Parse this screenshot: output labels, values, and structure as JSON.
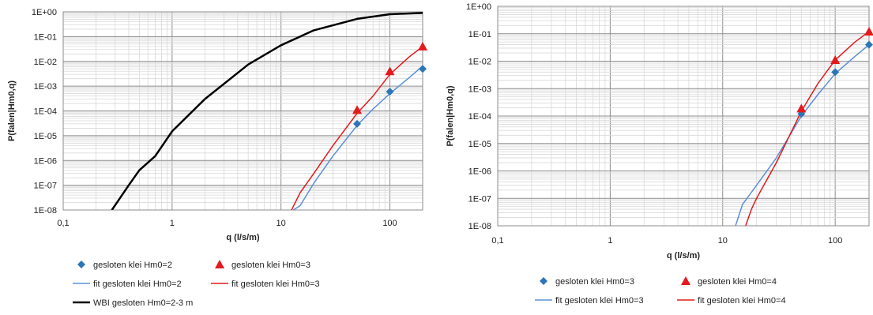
{
  "chart_data": [
    {
      "type": "line",
      "xlabel": "q (l/s/m)",
      "ylabel": "P(falen|Hm0,q)",
      "x_scale": "log",
      "y_scale": "log",
      "xlim": [
        0.1,
        200
      ],
      "ylim": [
        1e-08,
        1
      ],
      "x_tick_labels": [
        "0,1",
        "1",
        "10",
        "100"
      ],
      "x_tick_values": [
        0.1,
        1,
        10,
        100
      ],
      "y_tick_labels": [
        "1E-08",
        "1E-07",
        "1E-06",
        "1E-05",
        "1E-04",
        "1E-03",
        "1E-02",
        "1E-01",
        "1E+00"
      ],
      "grid": true,
      "legend_position": "bottom",
      "series": [
        {
          "name": "gesloten klei Hm0=2",
          "kind": "marker",
          "marker": "diamond",
          "color": "#2e75b6",
          "x": [
            50,
            100,
            200
          ],
          "y": [
            3e-05,
            0.0006,
            0.005
          ]
        },
        {
          "name": "gesloten klei Hm0=3",
          "kind": "marker",
          "marker": "triangle",
          "color": "#e41a1c",
          "x": [
            50,
            100,
            200
          ],
          "y": [
            0.00011,
            0.004,
            0.04
          ]
        },
        {
          "name": "fit gesloten klei Hm0=2",
          "kind": "line",
          "color": "#5b8fd6",
          "width": 1.5,
          "x": [
            13,
            15,
            20,
            30,
            50,
            70,
            100,
            150,
            200
          ],
          "y": [
            1e-08,
            1.5e-08,
            1.2e-07,
            1.5e-06,
            2.6e-05,
            0.00012,
            0.0005,
            0.0022,
            0.0065
          ]
        },
        {
          "name": "fit gesloten klei Hm0=3",
          "kind": "line",
          "color": "#e41a1c",
          "width": 1.5,
          "x": [
            12.5,
            15,
            20,
            30,
            50,
            70,
            100,
            150,
            200
          ],
          "y": [
            1e-08,
            5e-08,
            3e-07,
            4e-06,
            8e-05,
            0.0004,
            0.003,
            0.015,
            0.04
          ]
        },
        {
          "name": "WBI gesloten Hm0=2-3 m",
          "kind": "line",
          "color": "#000000",
          "width": 2.5,
          "x": [
            0.28,
            0.4,
            0.5,
            0.7,
            1,
            2,
            5,
            10,
            20,
            50,
            100,
            200
          ],
          "y": [
            1e-08,
            1e-07,
            4e-07,
            1.5e-06,
            1.5e-05,
            0.0003,
            0.0075,
            0.045,
            0.18,
            0.52,
            0.8,
            0.9
          ]
        }
      ],
      "legend_rows": [
        [
          "gesloten klei Hm0=2",
          "gesloten klei Hm0=3"
        ],
        [
          "fit gesloten klei Hm0=2",
          "fit gesloten klei Hm0=3"
        ],
        [
          "WBI gesloten Hm0=2-3 m"
        ]
      ]
    },
    {
      "type": "line",
      "xlabel": "q (l/s/m)",
      "ylabel": "P(falen|Hm0,q)",
      "x_scale": "log",
      "y_scale": "log",
      "xlim": [
        0.1,
        200
      ],
      "ylim": [
        1e-08,
        1
      ],
      "x_tick_labels": [
        "0,1",
        "1",
        "10",
        "100"
      ],
      "x_tick_values": [
        0.1,
        1,
        10,
        100
      ],
      "y_tick_labels": [
        "1E-08",
        "1E-07",
        "1E-06",
        "1E-05",
        "1E-04",
        "1E-03",
        "1E-02",
        "1E-01",
        "1E+00"
      ],
      "grid": true,
      "legend_position": "bottom",
      "series": [
        {
          "name": "gesloten klei Hm0=3",
          "kind": "marker",
          "marker": "diamond",
          "color": "#2e75b6",
          "x": [
            50,
            100,
            200
          ],
          "y": [
            0.00012,
            0.004,
            0.04
          ]
        },
        {
          "name": "gesloten klei Hm0=4",
          "kind": "marker",
          "marker": "triangle",
          "color": "#e41a1c",
          "x": [
            50,
            100,
            200
          ],
          "y": [
            0.00019,
            0.011,
            0.12
          ]
        },
        {
          "name": "fit gesloten klei Hm0=3",
          "kind": "line",
          "color": "#5b8fd6",
          "width": 1.5,
          "x": [
            13,
            15,
            20,
            30,
            50,
            70,
            100,
            150,
            200
          ],
          "y": [
            1e-08,
            6e-08,
            3e-07,
            3e-06,
            0.0001,
            0.0006,
            0.0035,
            0.015,
            0.04
          ]
        },
        {
          "name": "fit gesloten klei Hm0=4",
          "kind": "line",
          "color": "#e41a1c",
          "width": 1.5,
          "x": [
            16,
            18,
            20,
            30,
            50,
            70,
            100,
            150,
            200
          ],
          "y": [
            1e-08,
            4e-08,
            1e-07,
            2e-06,
            0.00015,
            0.0015,
            0.011,
            0.05,
            0.12
          ]
        }
      ],
      "legend_rows": [
        [
          "gesloten klei Hm0=3",
          "gesloten klei Hm0=4"
        ],
        [
          "fit gesloten klei Hm0=3",
          "fit gesloten klei Hm0=4"
        ]
      ]
    }
  ]
}
